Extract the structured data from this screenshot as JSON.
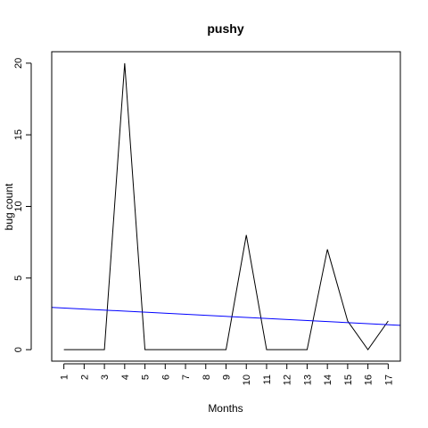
{
  "chart_data": {
    "type": "line",
    "title": "pushy",
    "xlabel": "Months",
    "ylabel": "bug count",
    "x": [
      1,
      2,
      3,
      4,
      5,
      6,
      7,
      8,
      9,
      10,
      11,
      12,
      13,
      14,
      15,
      16,
      17
    ],
    "x_tick_labels": [
      "1",
      "2",
      "3",
      "4",
      "5",
      "6",
      "7",
      "8",
      "9",
      "10",
      "11",
      "12",
      "13",
      "14",
      "15",
      "16",
      "17"
    ],
    "y_ticks": [
      0,
      5,
      10,
      15,
      20
    ],
    "y_tick_labels": [
      "0",
      "5",
      "10",
      "15",
      "20"
    ],
    "xlim": [
      0.4,
      17.6
    ],
    "ylim": [
      -0.8,
      20.8
    ],
    "grid": false,
    "legend": "none",
    "series": [
      {
        "values": [
          0,
          0,
          0,
          20,
          0,
          0,
          0,
          0,
          0,
          8,
          0,
          0,
          0,
          7,
          2,
          0,
          2
        ],
        "color": "#000000"
      }
    ],
    "trend_line": {
      "color": "#0000ff",
      "x": [
        0.4,
        17.6
      ],
      "y": [
        2.95,
        1.7
      ]
    }
  }
}
